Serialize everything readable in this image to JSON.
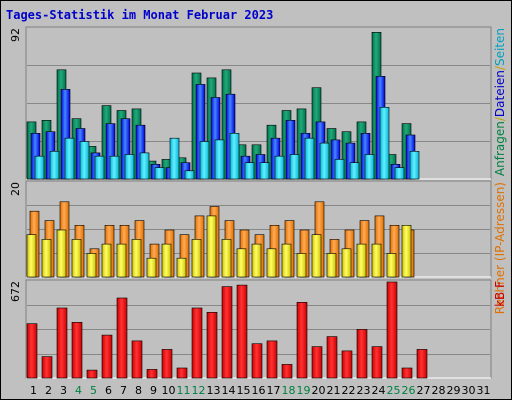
{
  "colors": {
    "background": "#c0c0c0",
    "title": "#0000cc",
    "weekday": "#000000",
    "weekend": "#008040",
    "pages_base": "#007050",
    "pages_light": "#22aa77",
    "files_base": "#0000dd",
    "files_light": "#4488ff",
    "hits_base": "#00b8d8",
    "hits_light": "#66eeff",
    "visits_base": "#e07000",
    "visits_light": "#ffaa55",
    "sites_base": "#d0c000",
    "sites_light": "#ffff66",
    "kb_base": "#cc0000",
    "kb_light": "#ff3333"
  },
  "chart_data": {
    "type": "bar",
    "title": "Tages-Statistik im Monat Februar 2023",
    "x": [
      "1",
      "2",
      "3",
      "4",
      "5",
      "6",
      "7",
      "8",
      "9",
      "10",
      "11",
      "12",
      "13",
      "14",
      "15",
      "16",
      "17",
      "18",
      "19",
      "20",
      "21",
      "22",
      "23",
      "24",
      "25",
      "26",
      "27",
      "28",
      "29",
      "30",
      "31"
    ],
    "weekend_days": [
      4,
      5,
      11,
      12,
      18,
      19,
      25,
      26
    ],
    "panels": [
      {
        "ymax": "92",
        "legend": [
          {
            "text": "Anfragen",
            "color": "#008040"
          },
          {
            "text": "/",
            "color": "#c0a000"
          },
          {
            "text": "Dateien",
            "color": "#0000cc"
          },
          {
            "text": "/",
            "color": "#c0a000"
          },
          {
            "text": "Seiten",
            "color": "#00a0c0"
          }
        ],
        "series": [
          {
            "name": "Anfragen",
            "values": [
              35,
              36,
              67,
              37,
              20,
              45,
              42,
              43,
              11,
              12,
              13,
              65,
              62,
              67,
              21,
              21,
              33,
              42,
              43,
              56,
              31,
              29,
              35,
              90,
              15,
              34,
              0,
              0,
              0,
              0,
              0
            ]
          },
          {
            "name": "Dateien",
            "values": [
              28,
              29,
              55,
              31,
              16,
              34,
              37,
              33,
              9,
              7,
              10,
              58,
              50,
              52,
              14,
              15,
              25,
              36,
              28,
              35,
              24,
              22,
              28,
              63,
              9,
              27,
              0,
              0,
              0,
              0,
              0
            ]
          },
          {
            "name": "Seiten",
            "values": [
              14,
              17,
              25,
              23,
              14,
              14,
              15,
              16,
              7,
              25,
              5,
              23,
              24,
              28,
              10,
              10,
              14,
              15,
              25,
              22,
              12,
              10,
              15,
              44,
              7,
              17,
              0,
              0,
              0,
              0,
              0
            ]
          }
        ]
      },
      {
        "ymax": "20",
        "legend": [
          {
            "text": "Rechner (IP-Adressen)",
            "color": "#e07000"
          }
        ],
        "series": [
          {
            "name": "Rechner (IP-Adressen)",
            "values": [
              14,
              12,
              16,
              11,
              6,
              11,
              11,
              12,
              7,
              10,
              9,
              13,
              15,
              12,
              10,
              9,
              11,
              12,
              10,
              16,
              8,
              10,
              12,
              13,
              11,
              10,
              0,
              0,
              0,
              0,
              0
            ]
          },
          {
            "name": "Besuche",
            "values": [
              9,
              8,
              10,
              8,
              5,
              7,
              7,
              8,
              4,
              7,
              4,
              8,
              13,
              8,
              6,
              7,
              6,
              7,
              5,
              9,
              5,
              6,
              7,
              7,
              5,
              11,
              0,
              0,
              0,
              0,
              0
            ]
          }
        ]
      },
      {
        "ymax": "672",
        "legend": [
          {
            "text": "kB F",
            "color": "#cc0000"
          }
        ],
        "series": [
          {
            "name": "kB F",
            "values": [
              380,
              150,
              490,
              390,
              55,
              300,
              560,
              260,
              60,
              200,
              70,
              490,
              460,
              640,
              650,
              240,
              260,
              95,
              530,
              220,
              290,
              190,
              340,
              220,
              672,
              70,
              200,
              0,
              0,
              0,
              0
            ]
          }
        ]
      }
    ]
  }
}
